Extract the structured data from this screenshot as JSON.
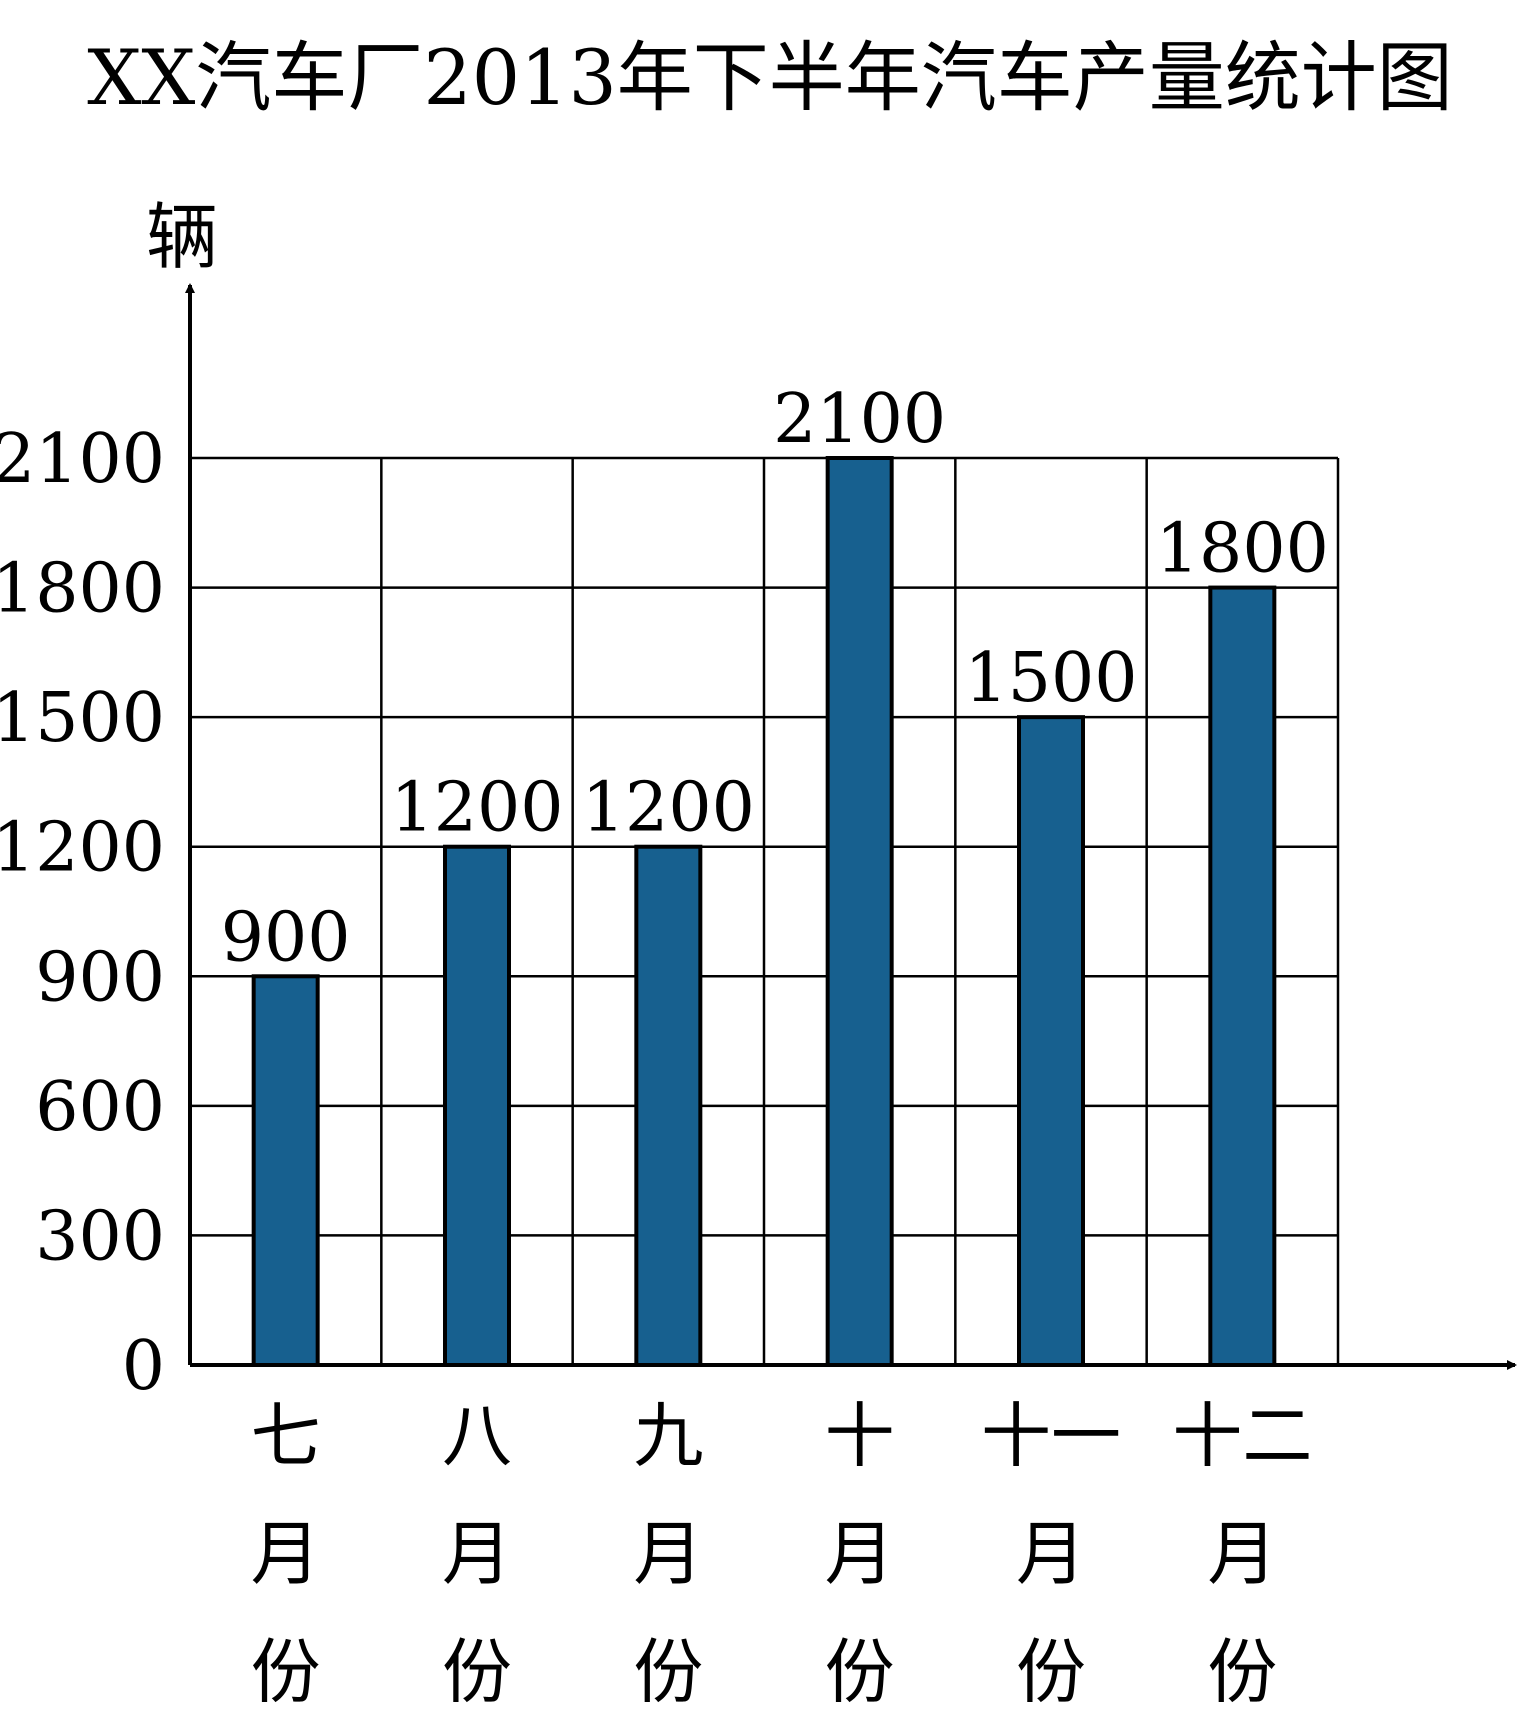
{
  "chart_data": {
    "type": "bar",
    "title": "XX汽车厂2013年下半年汽车产量统计图",
    "ylabel": "辆",
    "xlabel": "",
    "categories": [
      "七月份",
      "八月份",
      "九月份",
      "十月份",
      "十一月份",
      "十二月份"
    ],
    "category_lines": [
      [
        "七",
        "月",
        "份"
      ],
      [
        "八",
        "月",
        "份"
      ],
      [
        "九",
        "月",
        "份"
      ],
      [
        "十",
        "月",
        "份"
      ],
      [
        "十一",
        "月",
        "份"
      ],
      [
        "十二",
        "月",
        "份"
      ]
    ],
    "values": [
      900,
      1200,
      1200,
      2100,
      1500,
      1800
    ],
    "data_labels": [
      "900",
      "1200",
      "1200",
      "2100",
      "1500",
      "1800"
    ],
    "ylim": [
      0,
      2100
    ],
    "yticks": [
      0,
      300,
      600,
      900,
      1200,
      1500,
      1800,
      2100
    ],
    "ytick_labels": [
      "0",
      "300",
      "600",
      "900",
      "1200",
      "1500",
      "1800",
      "2100"
    ],
    "grid": true,
    "bar_color": "#17608F"
  }
}
